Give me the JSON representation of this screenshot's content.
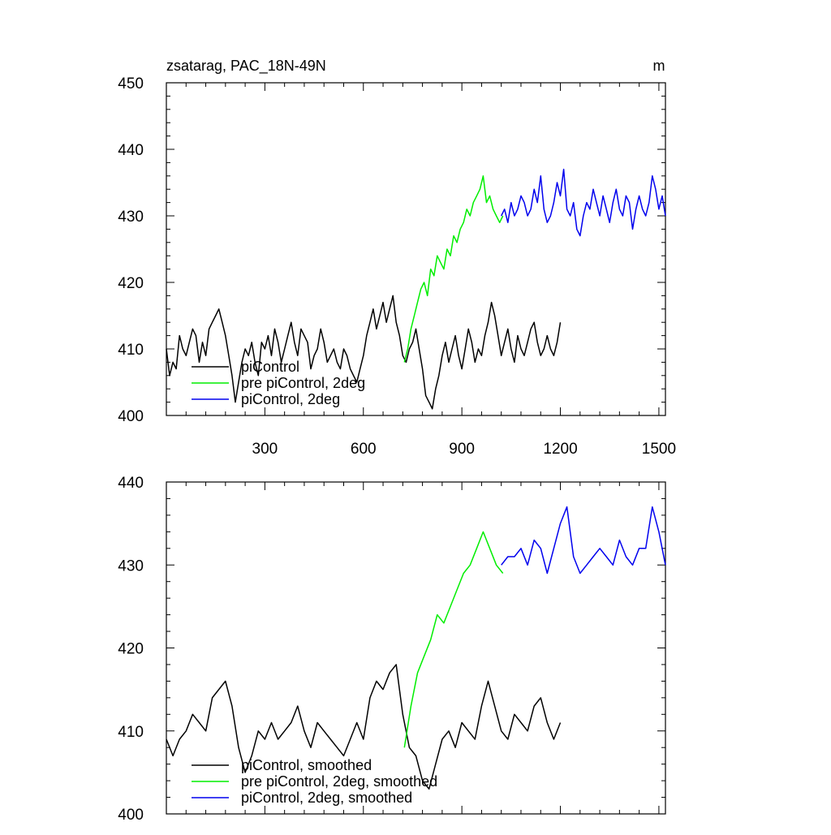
{
  "chart_data": [
    {
      "type": "line",
      "title": "zsatarag, PAC_18N-49N",
      "units": "m",
      "xlim": [
        0,
        1520
      ],
      "ylim": [
        400,
        450
      ],
      "xticks": [
        300,
        600,
        900,
        1200,
        1500
      ],
      "yticks": [
        400,
        410,
        420,
        430,
        440,
        450
      ],
      "xlabel": "",
      "ylabel": "",
      "legend": {
        "placement": "bottom-left"
      },
      "series": [
        {
          "name": "piControl",
          "color": "#000000",
          "x": [
            0,
            10,
            20,
            30,
            40,
            50,
            60,
            70,
            80,
            90,
            100,
            110,
            120,
            130,
            140,
            150,
            160,
            170,
            180,
            190,
            200,
            210,
            220,
            230,
            240,
            250,
            260,
            270,
            280,
            290,
            300,
            310,
            320,
            330,
            340,
            350,
            360,
            370,
            380,
            390,
            400,
            410,
            420,
            430,
            440,
            450,
            460,
            470,
            480,
            490,
            500,
            510,
            520,
            530,
            540,
            550,
            560,
            570,
            580,
            590,
            600,
            610,
            620,
            630,
            640,
            650,
            660,
            670,
            680,
            690,
            700,
            710,
            720,
            730,
            740,
            750,
            760,
            770,
            780,
            790,
            800,
            810,
            820,
            830,
            840,
            850,
            860,
            870,
            880,
            890,
            900,
            910,
            920,
            930,
            940,
            950,
            960,
            970,
            980,
            990,
            1000,
            1010,
            1020,
            1030,
            1040,
            1050,
            1060,
            1070,
            1080,
            1090,
            1100,
            1110,
            1120,
            1130,
            1140,
            1150,
            1160,
            1170,
            1180,
            1190,
            1200
          ],
          "y": [
            410,
            406,
            408,
            407,
            412,
            410,
            409,
            411,
            413,
            412,
            408,
            411,
            409,
            413,
            414,
            415,
            416,
            414,
            412,
            409,
            406,
            402,
            405,
            408,
            410,
            409,
            411,
            408,
            406,
            411,
            410,
            412,
            409,
            413,
            411,
            408,
            410,
            412,
            414,
            411,
            409,
            413,
            412,
            411,
            407,
            409,
            410,
            413,
            411,
            408,
            409,
            410,
            408,
            407,
            410,
            409,
            407,
            406,
            405,
            407,
            409,
            412,
            414,
            416,
            413,
            415,
            417,
            414,
            416,
            418,
            414,
            412,
            409,
            408,
            410,
            411,
            413,
            410,
            407,
            403,
            402,
            401,
            404,
            406,
            409,
            411,
            408,
            410,
            412,
            409,
            407,
            410,
            413,
            411,
            408,
            410,
            409,
            412,
            414,
            417,
            415,
            412,
            409,
            411,
            413,
            410,
            408,
            412,
            410,
            409,
            411,
            413,
            414,
            411,
            409,
            410,
            412,
            410,
            409,
            411,
            414
          ]
        },
        {
          "name": "pre piControl, 2deg",
          "color": "#00ee00",
          "x": [
            725,
            735,
            745,
            755,
            765,
            775,
            785,
            795,
            805,
            815,
            825,
            835,
            845,
            855,
            865,
            875,
            885,
            895,
            905,
            915,
            925,
            935,
            945,
            955,
            965,
            975,
            985,
            995,
            1005,
            1015,
            1025
          ],
          "y": [
            408,
            410,
            413,
            415,
            417,
            419,
            420,
            418,
            422,
            421,
            424,
            423,
            422,
            425,
            424,
            427,
            426,
            428,
            429,
            431,
            430,
            432,
            433,
            434,
            436,
            432,
            433,
            431,
            430,
            429,
            430
          ]
        },
        {
          "name": "piControl, 2deg",
          "color": "#0000ee",
          "x": [
            1020,
            1030,
            1040,
            1050,
            1060,
            1070,
            1080,
            1090,
            1100,
            1110,
            1120,
            1130,
            1140,
            1150,
            1160,
            1170,
            1180,
            1190,
            1200,
            1210,
            1220,
            1230,
            1240,
            1250,
            1260,
            1270,
            1280,
            1290,
            1300,
            1310,
            1320,
            1330,
            1340,
            1350,
            1360,
            1370,
            1380,
            1390,
            1400,
            1410,
            1420,
            1430,
            1440,
            1450,
            1460,
            1470,
            1480,
            1490,
            1500,
            1510,
            1520
          ],
          "y": [
            430,
            431,
            429,
            432,
            430,
            431,
            433,
            432,
            430,
            431,
            434,
            432,
            436,
            431,
            429,
            430,
            432,
            435,
            433,
            437,
            431,
            430,
            432,
            428,
            427,
            430,
            432,
            431,
            434,
            432,
            430,
            433,
            431,
            429,
            432,
            434,
            431,
            430,
            433,
            432,
            428,
            431,
            433,
            431,
            430,
            432,
            436,
            434,
            431,
            433,
            430
          ]
        }
      ]
    },
    {
      "type": "line",
      "title": "",
      "xlim": [
        0,
        1520
      ],
      "ylim": [
        400,
        440
      ],
      "yticks": [
        400,
        410,
        420,
        430,
        440
      ],
      "xlabel": "",
      "ylabel": "",
      "legend": {
        "placement": "bottom-left"
      },
      "series": [
        {
          "name": "piControl, smoothed",
          "color": "#000000",
          "x": [
            0,
            20,
            40,
            60,
            80,
            100,
            120,
            140,
            160,
            180,
            200,
            220,
            240,
            260,
            280,
            300,
            320,
            340,
            360,
            380,
            400,
            420,
            440,
            460,
            480,
            500,
            520,
            540,
            560,
            580,
            600,
            620,
            640,
            660,
            680,
            700,
            720,
            740,
            760,
            780,
            800,
            820,
            840,
            860,
            880,
            900,
            920,
            940,
            960,
            980,
            1000,
            1020,
            1040,
            1060,
            1080,
            1100,
            1120,
            1140,
            1160,
            1180,
            1200
          ],
          "y": [
            409,
            407,
            409,
            410,
            412,
            411,
            410,
            414,
            415,
            416,
            413,
            408,
            405,
            407,
            410,
            409,
            411,
            409,
            410,
            411,
            413,
            410,
            408,
            411,
            410,
            409,
            408,
            407,
            409,
            411,
            409,
            414,
            416,
            415,
            417,
            418,
            412,
            408,
            407,
            404,
            403,
            406,
            409,
            410,
            408,
            411,
            410,
            409,
            413,
            416,
            413,
            410,
            409,
            412,
            411,
            410,
            413,
            414,
            411,
            409,
            411
          ]
        },
        {
          "name": "pre piControl, 2deg, smoothed",
          "color": "#00ee00",
          "x": [
            725,
            745,
            765,
            785,
            805,
            825,
            845,
            865,
            885,
            905,
            925,
            945,
            965,
            985,
            1005,
            1025
          ],
          "y": [
            408,
            413,
            417,
            419,
            421,
            424,
            423,
            425,
            427,
            429,
            430,
            432,
            434,
            432,
            430,
            429
          ]
        },
        {
          "name": "piControl, 2deg, smoothed",
          "color": "#0000ee",
          "x": [
            1020,
            1040,
            1060,
            1080,
            1100,
            1120,
            1140,
            1160,
            1180,
            1200,
            1220,
            1240,
            1260,
            1280,
            1300,
            1320,
            1340,
            1360,
            1380,
            1400,
            1420,
            1440,
            1460,
            1480,
            1500,
            1520
          ],
          "y": [
            430,
            431,
            431,
            432,
            430,
            433,
            432,
            429,
            432,
            435,
            437,
            431,
            429,
            430,
            431,
            432,
            431,
            430,
            433,
            431,
            430,
            432,
            432,
            437,
            434,
            430
          ]
        }
      ]
    }
  ]
}
